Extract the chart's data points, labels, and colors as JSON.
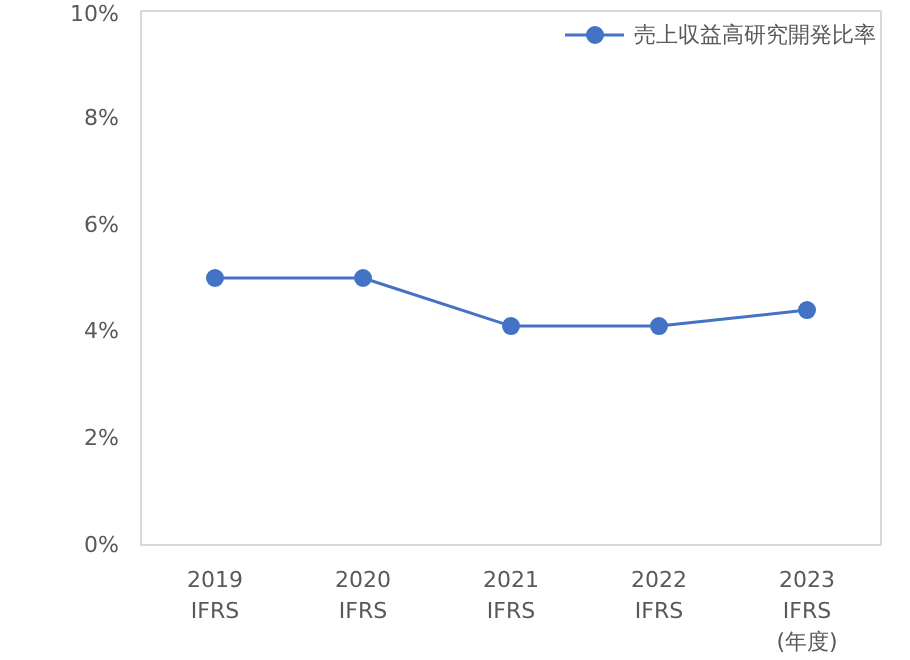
{
  "chart_data": {
    "type": "line",
    "categories": [
      "2019\nIFRS",
      "2020\nIFRS",
      "2021\nIFRS",
      "2022\nIFRS",
      "2023\nIFRS\n(年度)"
    ],
    "series": [
      {
        "name": "売上収益高研究開発比率",
        "color": "#4472c4",
        "values": [
          5.0,
          5.0,
          4.1,
          4.1,
          4.4
        ]
      }
    ],
    "ylim": [
      0,
      10
    ],
    "yticks": [
      {
        "value": 0,
        "label": "0%"
      },
      {
        "value": 2,
        "label": "2%"
      },
      {
        "value": 4,
        "label": "4%"
      },
      {
        "value": 6,
        "label": "6%"
      },
      {
        "value": 8,
        "label": "8%"
      },
      {
        "value": 10,
        "label": "10%"
      }
    ],
    "grid": false,
    "legend": "top right",
    "marker": "circle",
    "line_style": "solid"
  }
}
